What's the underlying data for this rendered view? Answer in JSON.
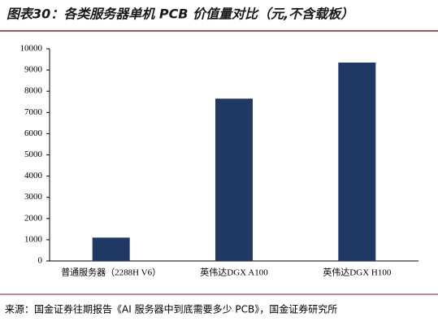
{
  "chart_data": {
    "type": "bar",
    "title": "图表30：各类服务器单机 PCB 价值量对比（元,不含载板）",
    "source": "来源：国金证券往期报告《AI 服务器中到底需要多少 PCB》，国金证券研究所",
    "categories": [
      "普通服务器（2288H V6）",
      "英伟达DGX A100",
      "英伟达DGX H100"
    ],
    "values": [
      1100,
      7650,
      9350
    ],
    "color": "#1f3864",
    "ylim": [
      0,
      10000
    ],
    "yticks": [
      0,
      1000,
      2000,
      3000,
      4000,
      5000,
      6000,
      7000,
      8000,
      9000,
      10000
    ],
    "grid": false
  }
}
